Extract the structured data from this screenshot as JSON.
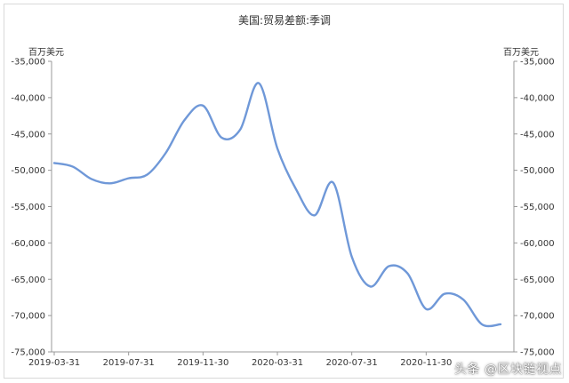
{
  "chart_data": {
    "type": "line",
    "title": "美国:贸易差额:季调",
    "y_unit_left": "百万美元",
    "y_unit_right": "百万美元",
    "ylim": [
      -75000,
      -35000
    ],
    "yticks": [
      "-35,000",
      "-40,000",
      "-45,000",
      "-50,000",
      "-55,000",
      "-60,000",
      "-65,000",
      "-70,000",
      "-75,000"
    ],
    "ytick_values": [
      -35000,
      -40000,
      -45000,
      -50000,
      -55000,
      -60000,
      -65000,
      -70000,
      -75000
    ],
    "xticks": [
      "2019-03-31",
      "2019-07-31",
      "2019-11-30",
      "2020-03-31",
      "2020-07-31",
      "2020-11-30"
    ],
    "x": [
      "2019-03",
      "2019-04",
      "2019-05",
      "2019-06",
      "2019-07",
      "2019-08",
      "2019-09",
      "2019-10",
      "2019-11",
      "2019-12",
      "2020-01",
      "2020-02",
      "2020-03",
      "2020-04",
      "2020-05",
      "2020-06",
      "2020-07",
      "2020-08",
      "2020-09",
      "2020-10",
      "2020-11",
      "2020-12",
      "2021-01",
      "2021-02",
      "2021-03"
    ],
    "series": [
      {
        "name": "",
        "color": "#6f98d8",
        "values": [
          -49000,
          -49500,
          -51200,
          -51800,
          -51100,
          -50600,
          -47600,
          -43100,
          -41100,
          -45500,
          -44400,
          -38000,
          -47000,
          -52600,
          -56200,
          -51700,
          -61900,
          -66000,
          -63200,
          -64200,
          -69100,
          -67000,
          -67800,
          -71200,
          -71200
        ]
      }
    ],
    "grid": false,
    "legend": "none"
  },
  "watermark": "头条 @区块链视点"
}
